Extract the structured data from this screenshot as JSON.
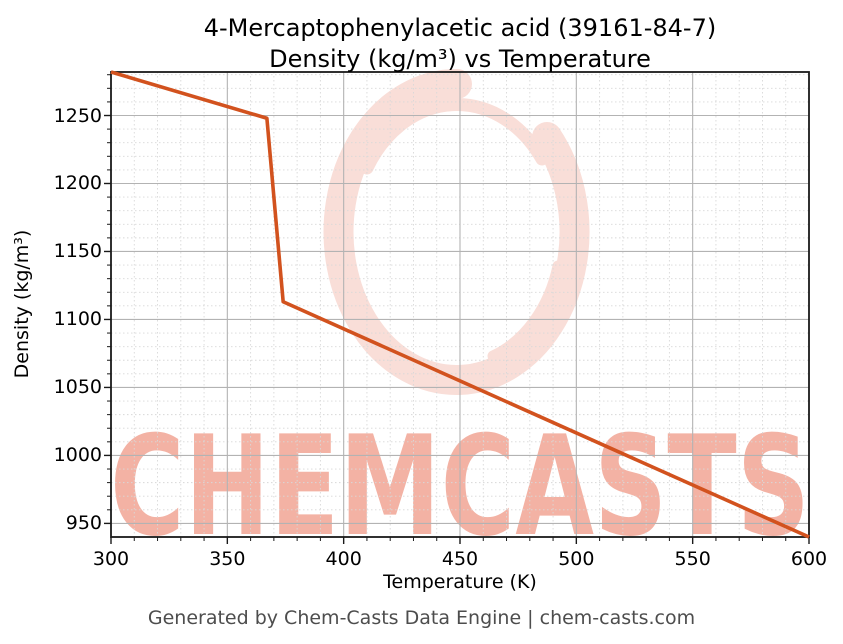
{
  "title": {
    "line1": "4-Mercaptophenylacetic acid (39161-84-7)",
    "line2": "Density (kg/m³) vs Temperature"
  },
  "axes": {
    "x": {
      "label": "Temperature (K)",
      "ticks": [
        300,
        350,
        400,
        450,
        500,
        550,
        600
      ],
      "minor_step": 10,
      "lim": [
        300,
        600
      ]
    },
    "y": {
      "label": "Density (kg/m³)",
      "ticks": [
        950,
        1000,
        1050,
        1100,
        1150,
        1200,
        1250
      ],
      "minor_step": 10,
      "lim": [
        940,
        1282
      ]
    }
  },
  "chart_data": {
    "type": "line",
    "title": "4-Mercaptophenylacetic acid (39161-84-7) Density (kg/m³) vs Temperature",
    "xlabel": "Temperature (K)",
    "ylabel": "Density (kg/m³)",
    "series": [
      {
        "name": "Density",
        "x": [
          300,
          367,
          374,
          600
        ],
        "y": [
          1282,
          1248,
          1113,
          940
        ]
      }
    ],
    "xlim": [
      300,
      600
    ],
    "ylim": [
      940,
      1282
    ],
    "grid": true,
    "line_color": "#d2521e",
    "line_width": 3.6
  },
  "watermark": {
    "text": "CHEMCASTS",
    "text_color": "#f3b2a4",
    "circle_color": "#f9ded8"
  },
  "footer": {
    "text": "Generated by Chem-Casts Data Engine | chem-casts.com"
  },
  "colors": {
    "grid_major": "#b3b3b3",
    "grid_minor": "#d8d8d8",
    "spine": "#1a1a1a",
    "tick": "#1a1a1a",
    "footer_text": "#4d4d4d"
  }
}
